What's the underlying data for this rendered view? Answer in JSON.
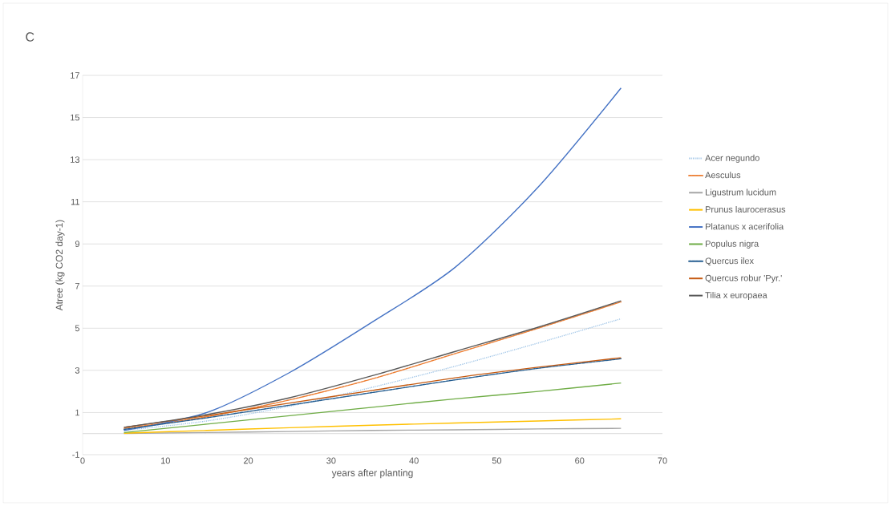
{
  "chart_data": {
    "type": "line",
    "title": "C",
    "xlabel": "years after planting",
    "ylabel": "Atree (kg CO2 day-1)",
    "xlim": [
      0,
      70
    ],
    "xticks": [
      0,
      10,
      20,
      30,
      40,
      50,
      60,
      70
    ],
    "ylim": [
      -1,
      17
    ],
    "yticks": [
      -1,
      1,
      3,
      5,
      7,
      9,
      11,
      13,
      15,
      17
    ],
    "grid": "y",
    "legend": "right",
    "marker": "none",
    "x": [
      5,
      15,
      25,
      35,
      45,
      55,
      65
    ],
    "series": [
      {
        "name": "Acer negundo",
        "color": "#9dc3e6",
        "line_style": "dotted",
        "values": [
          0.15,
          0.6,
          1.3,
          2.2,
          3.2,
          4.3,
          5.45
        ]
      },
      {
        "name": "Aesculus",
        "color": "#ed7d31",
        "line_style": "dashed",
        "values": [
          0.25,
          0.8,
          1.6,
          2.6,
          3.8,
          5.0,
          6.25
        ]
      },
      {
        "name": "Ligustrum lucidum",
        "color": "#a5a5a5",
        "line_style": "solid",
        "values": [
          0.01,
          0.05,
          0.1,
          0.15,
          0.18,
          0.22,
          0.25
        ]
      },
      {
        "name": "Prunus laurocerasus",
        "color": "#ffc000",
        "line_style": "solid",
        "values": [
          0.02,
          0.15,
          0.28,
          0.4,
          0.5,
          0.6,
          0.7
        ]
      },
      {
        "name": "Platanus x acerifolia",
        "color": "#4472c4",
        "line_style": "solid",
        "values": [
          0.15,
          1.0,
          2.9,
          5.3,
          7.9,
          11.7,
          16.4
        ]
      },
      {
        "name": "Populus nigra",
        "color": "#70ad47",
        "line_style": "solid",
        "values": [
          0.05,
          0.45,
          0.85,
          1.25,
          1.65,
          2.0,
          2.4
        ]
      },
      {
        "name": "Quercus ilex",
        "color": "#255e91",
        "line_style": "dashed",
        "values": [
          0.2,
          0.75,
          1.35,
          1.95,
          2.55,
          3.1,
          3.55
        ]
      },
      {
        "name": "Quercus robur 'Pyr.'",
        "color": "#c55a11",
        "line_style": "solid",
        "values": [
          0.3,
          0.85,
          1.45,
          2.05,
          2.65,
          3.15,
          3.6
        ]
      },
      {
        "name": "Tilia x europaea",
        "color": "#595959",
        "line_style": "solid",
        "values": [
          0.3,
          0.9,
          1.7,
          2.75,
          3.9,
          5.05,
          6.3
        ]
      }
    ]
  }
}
